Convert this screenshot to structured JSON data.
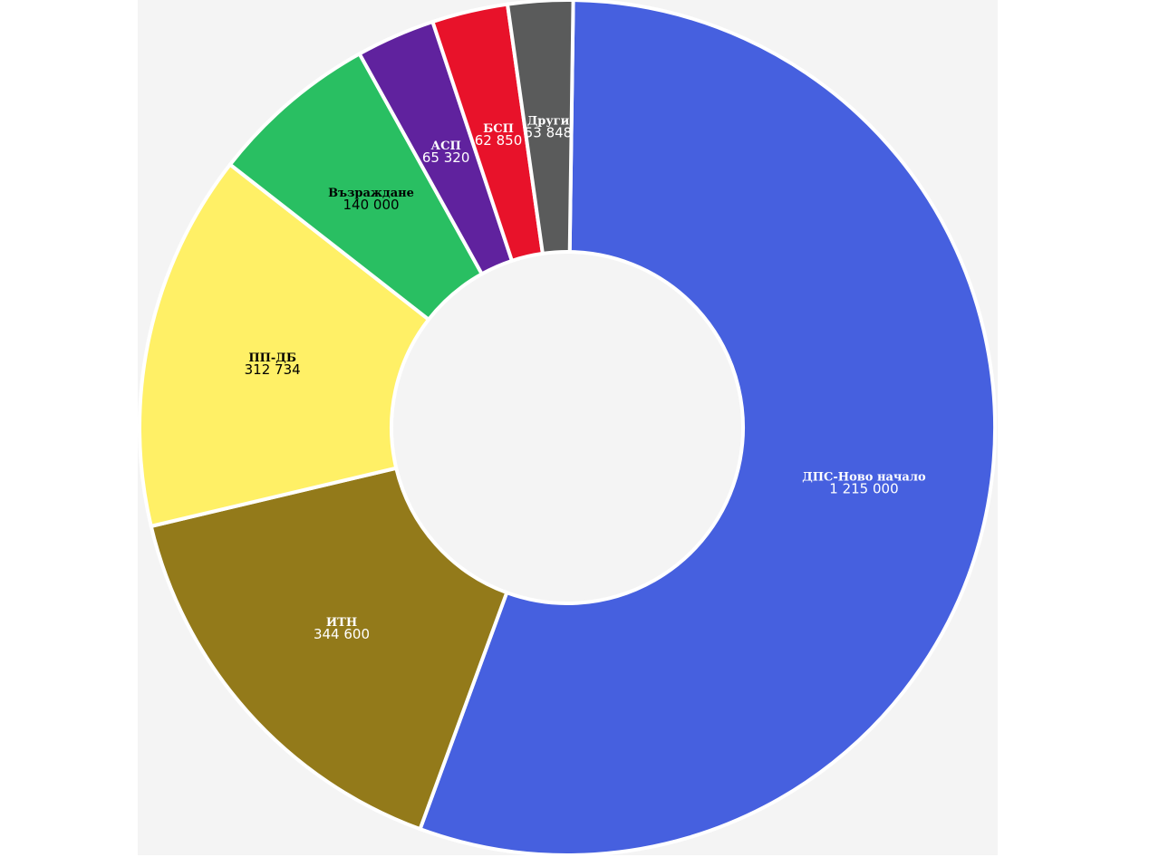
{
  "chart_data": {
    "type": "pie",
    "donut": true,
    "slices": [
      {
        "label": "ДПС-Ново начало",
        "value": 1215000,
        "display": "1 215 000",
        "color": "#4660df",
        "text_color": "#ffffff"
      },
      {
        "label": "ИТН",
        "value": 344600,
        "display": "344 600",
        "color": "#937a1a",
        "text_color": "#ffffff"
      },
      {
        "label": "ПП-ДБ",
        "value": 312734,
        "display": "312 734",
        "color": "#fff066",
        "text_color": "#000000"
      },
      {
        "label": "Възраждане",
        "value": 140000,
        "display": "140 000",
        "color": "#29bf62",
        "text_color": "#000000"
      },
      {
        "label": "АСП",
        "value": 65320,
        "display": "65 320",
        "color": "#60229e",
        "text_color": "#ffffff"
      },
      {
        "label": "БСП",
        "value": 62850,
        "display": "62 850",
        "color": "#e8122a",
        "text_color": "#ffffff"
      },
      {
        "label": "Други",
        "value": 53848,
        "display": "53 848",
        "color": "#5a5b5b",
        "text_color": "#ffffff"
      }
    ]
  }
}
